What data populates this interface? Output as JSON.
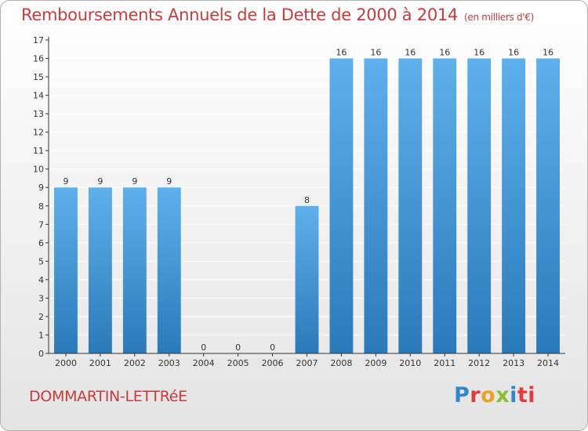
{
  "chart_title": "Remboursements Annuels de la Dette de 2000 à 2014",
  "chart_unit": "(en milliers d'€)",
  "commune": "DOMMARTIN-LETTRéE",
  "logo_letters": [
    "P",
    "r",
    "o",
    "x",
    "i",
    "ti"
  ],
  "colors": {
    "bar_top": "#5eb0ec",
    "bar_bottom": "#2a7ab9",
    "title": "#c93b3b",
    "grid": "#ffffff",
    "axis": "#333333"
  },
  "chart_data": {
    "type": "bar",
    "title": "Remboursements Annuels de la Dette de 2000 à 2014",
    "subtitle": "(en milliers d'€)",
    "xlabel": "",
    "ylabel": "",
    "ylim": [
      0,
      17
    ],
    "yticks": [
      0,
      1,
      2,
      3,
      4,
      5,
      6,
      7,
      8,
      9,
      10,
      11,
      12,
      13,
      14,
      15,
      16,
      17
    ],
    "grid": true,
    "categories": [
      "2000",
      "2001",
      "2002",
      "2003",
      "2004",
      "2005",
      "2006",
      "2007",
      "2008",
      "2009",
      "2010",
      "2011",
      "2012",
      "2013",
      "2014"
    ],
    "values": [
      9,
      9,
      9,
      9,
      0,
      0,
      0,
      8,
      16,
      16,
      16,
      16,
      16,
      16,
      16
    ]
  }
}
